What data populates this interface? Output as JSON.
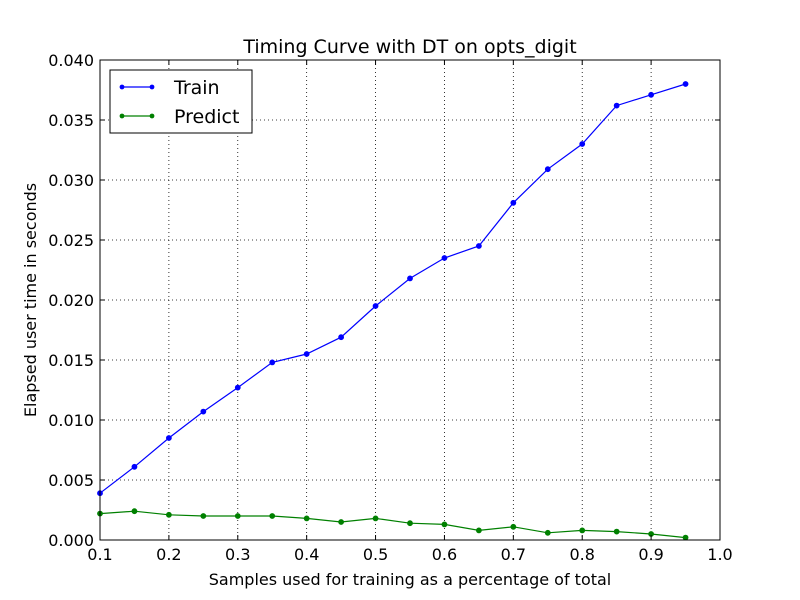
{
  "chart_data": {
    "type": "line",
    "title": "Timing Curve with DT on opts_digit",
    "xlabel": "Samples used for training as a percentage of total",
    "ylabel": "Elapsed user time in seconds",
    "xlim": [
      0.1,
      1.0
    ],
    "ylim": [
      0.0,
      0.04
    ],
    "x_ticks": [
      "0.1",
      "0.2",
      "0.3",
      "0.4",
      "0.5",
      "0.6",
      "0.7",
      "0.8",
      "0.9",
      "1.0"
    ],
    "y_ticks": [
      "0.000",
      "0.005",
      "0.010",
      "0.015",
      "0.020",
      "0.025",
      "0.030",
      "0.035",
      "0.040"
    ],
    "grid": true,
    "legend_position": "top-left",
    "x": [
      0.1,
      0.15,
      0.2,
      0.25,
      0.3,
      0.35,
      0.4,
      0.45,
      0.5,
      0.55,
      0.6,
      0.65,
      0.7,
      0.75,
      0.8,
      0.85,
      0.9,
      0.95
    ],
    "series": [
      {
        "name": "Train",
        "color": "#0000ff",
        "values": [
          0.0039,
          0.0061,
          0.0085,
          0.0107,
          0.0127,
          0.0148,
          0.0155,
          0.0169,
          0.0195,
          0.0218,
          0.0235,
          0.0245,
          0.0281,
          0.0309,
          0.033,
          0.0362,
          0.0371,
          0.038
        ]
      },
      {
        "name": "Predict",
        "color": "#008000",
        "values": [
          0.0022,
          0.0024,
          0.0021,
          0.002,
          0.002,
          0.002,
          0.0018,
          0.0015,
          0.0018,
          0.0014,
          0.0013,
          0.0008,
          0.0011,
          0.0006,
          0.0008,
          0.0007,
          0.0005,
          0.0002
        ]
      }
    ]
  }
}
